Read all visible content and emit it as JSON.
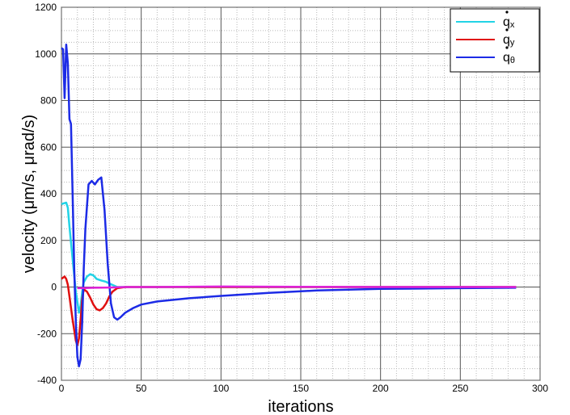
{
  "chart_data": {
    "type": "line",
    "title": "",
    "xlabel": "iterations",
    "ylabel": "velocity (μm/s, μrad/s)",
    "xlim": [
      0,
      300
    ],
    "ylim": [
      -400,
      1200
    ],
    "x_ticks": [
      0,
      50,
      100,
      150,
      200,
      250,
      300
    ],
    "y_ticks": [
      -400,
      -200,
      0,
      200,
      400,
      600,
      800,
      1000,
      1200
    ],
    "x_tick_labels": [
      "0",
      "50",
      "100",
      "150",
      "200",
      "250",
      "300"
    ],
    "y_tick_labels": [
      "-400",
      "-200",
      "0",
      "200",
      "400",
      "600",
      "800",
      "1000",
      "1200"
    ],
    "grid": true,
    "legend_position": "top-right",
    "series": [
      {
        "name": "q̇x",
        "legend_base": "q",
        "legend_sub": "x",
        "color": "#22d3e6",
        "x": [
          0,
          1,
          2,
          3,
          4,
          5,
          7,
          9,
          11,
          12,
          13,
          14,
          16,
          18,
          20,
          22,
          25,
          28,
          30,
          35,
          40,
          60,
          100,
          200,
          285
        ],
        "y": [
          355,
          358,
          360,
          362,
          340,
          260,
          120,
          -20,
          -110,
          -80,
          -20,
          20,
          45,
          55,
          50,
          35,
          28,
          22,
          15,
          0,
          0,
          0,
          0,
          0,
          0
        ]
      },
      {
        "name": "q̇y",
        "legend_base": "q",
        "legend_sub": "y",
        "color": "#e01010",
        "x": [
          0,
          1,
          2,
          3,
          4,
          5,
          7,
          9,
          10,
          11,
          12,
          13,
          14,
          16,
          18,
          20,
          22,
          24,
          26,
          28,
          30,
          32,
          35,
          40,
          60,
          100,
          200,
          285
        ],
        "y": [
          35,
          40,
          45,
          35,
          10,
          -40,
          -140,
          -230,
          -250,
          -220,
          -140,
          -50,
          -10,
          -20,
          -45,
          -75,
          -95,
          -100,
          -90,
          -70,
          -40,
          -20,
          -5,
          0,
          0,
          0,
          0,
          0
        ]
      },
      {
        "name": "q̇θ",
        "legend_base": "q",
        "legend_sub": "θ",
        "color": "#1c2be6",
        "x": [
          0,
          1,
          2,
          3,
          4,
          5,
          6,
          7,
          8,
          9,
          10,
          11,
          12,
          13,
          14,
          15,
          17,
          19,
          21,
          23,
          25,
          27,
          29,
          31,
          33,
          35,
          37,
          40,
          45,
          50,
          60,
          80,
          100,
          130,
          160,
          200,
          250,
          285
        ],
        "y": [
          1025,
          1020,
          810,
          1040,
          960,
          720,
          700,
          400,
          80,
          -150,
          -300,
          -340,
          -310,
          -150,
          80,
          250,
          440,
          455,
          440,
          460,
          470,
          330,
          100,
          -70,
          -130,
          -140,
          -130,
          -110,
          -90,
          -75,
          -62,
          -48,
          -38,
          -25,
          -15,
          -8,
          -5,
          -3
        ]
      },
      {
        "name": "",
        "color": "#e020d8",
        "x": [
          10,
          15,
          20,
          30,
          40,
          60,
          100,
          150,
          200,
          250,
          285
        ],
        "y": [
          -5,
          -4,
          -3,
          -2,
          0,
          0,
          2,
          1,
          0,
          0,
          0
        ]
      }
    ]
  }
}
